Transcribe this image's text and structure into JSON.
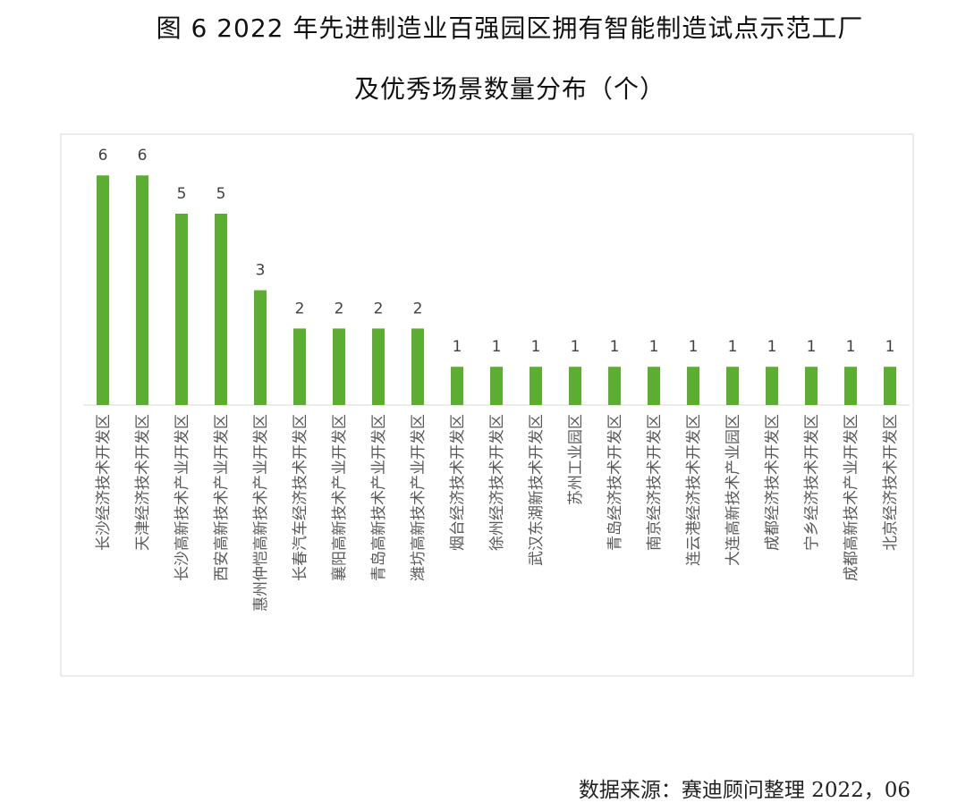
{
  "chart_data": {
    "type": "bar",
    "title": "图 6   2022 年先进制造业百强园区拥有智能制造试点示范工厂",
    "subtitle": "及优秀场景数量分布（个）",
    "xlabel": "",
    "ylabel": "",
    "ylim": [
      0,
      7
    ],
    "grid": false,
    "legend": "none",
    "bar_color": "#5BAE32",
    "categories": [
      "长沙经济技术开发区",
      "天津经济技术开发区",
      "长沙高新技术产业开发区",
      "西安高新技术产业开发区",
      "惠州仲恺高新技术产业开发区",
      "长春汽车经济技术开发区",
      "襄阳高新技术产业开发区",
      "青岛高新技术产业开发区",
      "潍坊高新技术产业开发区",
      "烟台经济技术开发区",
      "徐州经济技术开发区",
      "武汉东湖新技术开发区",
      "苏州工业园区",
      "青岛经济技术开发区",
      "南京经济技术开发区",
      "连云港经济技术开发区",
      "大连高新技术产业园区",
      "成都经济技术开发区",
      "宁乡经济技术开发区",
      "成都高新技术产业开发区",
      "北京经济技术开发区"
    ],
    "values": [
      6,
      6,
      5,
      5,
      3,
      2,
      2,
      2,
      2,
      1,
      1,
      1,
      1,
      1,
      1,
      1,
      1,
      1,
      1,
      1,
      1
    ]
  },
  "source": "数据来源：赛迪顾问整理 2022，06"
}
